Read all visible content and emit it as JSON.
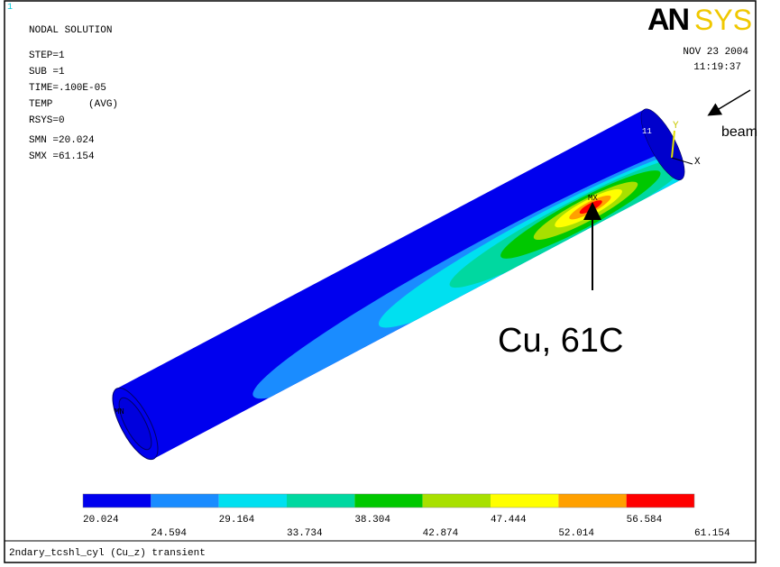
{
  "window": {
    "number": "1",
    "plot_title": "NODAL SOLUTION",
    "info_lines": [
      "STEP=1",
      "SUB =1",
      "TIME=.100E-05",
      "TEMP      (AVG)",
      "RSYS=0",
      "SMN =20.024",
      "SMX =61.154"
    ],
    "logo_left": "AN",
    "logo_right": "SYS",
    "date": "NOV 23 2004",
    "time": "11:19:37",
    "footer": "2ndary_tcshl_cyl (Cu_z) transient"
  },
  "model": {
    "min_tag": "MN",
    "max_tag": "MX",
    "axis_y": "Y",
    "axis_x": "X",
    "node_tag": "11"
  },
  "annotations": {
    "beam": "beam",
    "hotspot": "Cu, 61C"
  },
  "legend": {
    "colors": [
      "#0000ee",
      "#1a8cff",
      "#00e0f0",
      "#00d8a0",
      "#00c800",
      "#a8e000",
      "#ffff00",
      "#ffa000",
      "#ff0000"
    ],
    "labels": [
      "20.024",
      "24.594",
      "29.164",
      "33.734",
      "38.304",
      "42.874",
      "47.444",
      "52.014",
      "56.584",
      "61.154"
    ]
  }
}
